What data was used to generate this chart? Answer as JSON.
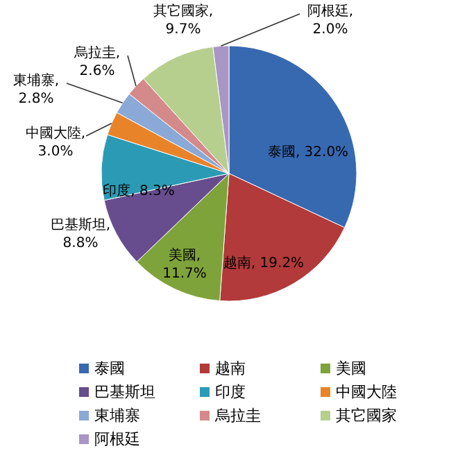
{
  "chart_data": {
    "type": "pie",
    "categories": [
      "泰國",
      "越南",
      "美國",
      "巴基斯坦",
      "印度",
      "中國大陸",
      "東埔寨",
      "烏拉圭",
      "其它國家",
      "阿根廷"
    ],
    "values": [
      32.0,
      19.2,
      11.7,
      8.8,
      8.3,
      3.0,
      2.8,
      2.6,
      9.7,
      2.0
    ],
    "value_labels": [
      "泰國, 32.0%",
      "越南, 19.2%",
      "美國, 11.7%",
      "巴基斯坦, 8.8%",
      "印度, 8.3%",
      "中國大陸, 3.0%",
      "東埔寨, 2.8%",
      "烏拉圭, 2.6%",
      "其它國家, 9.7%",
      "阿根廷, 2.0%"
    ],
    "colors": [
      "#3769b1",
      "#b23a3a",
      "#7fa33b",
      "#674d8d",
      "#2b9bb5",
      "#e9832a",
      "#8aa9d6",
      "#d48a8a",
      "#b6cf8e",
      "#a896c4"
    ],
    "legend": "bottom"
  }
}
